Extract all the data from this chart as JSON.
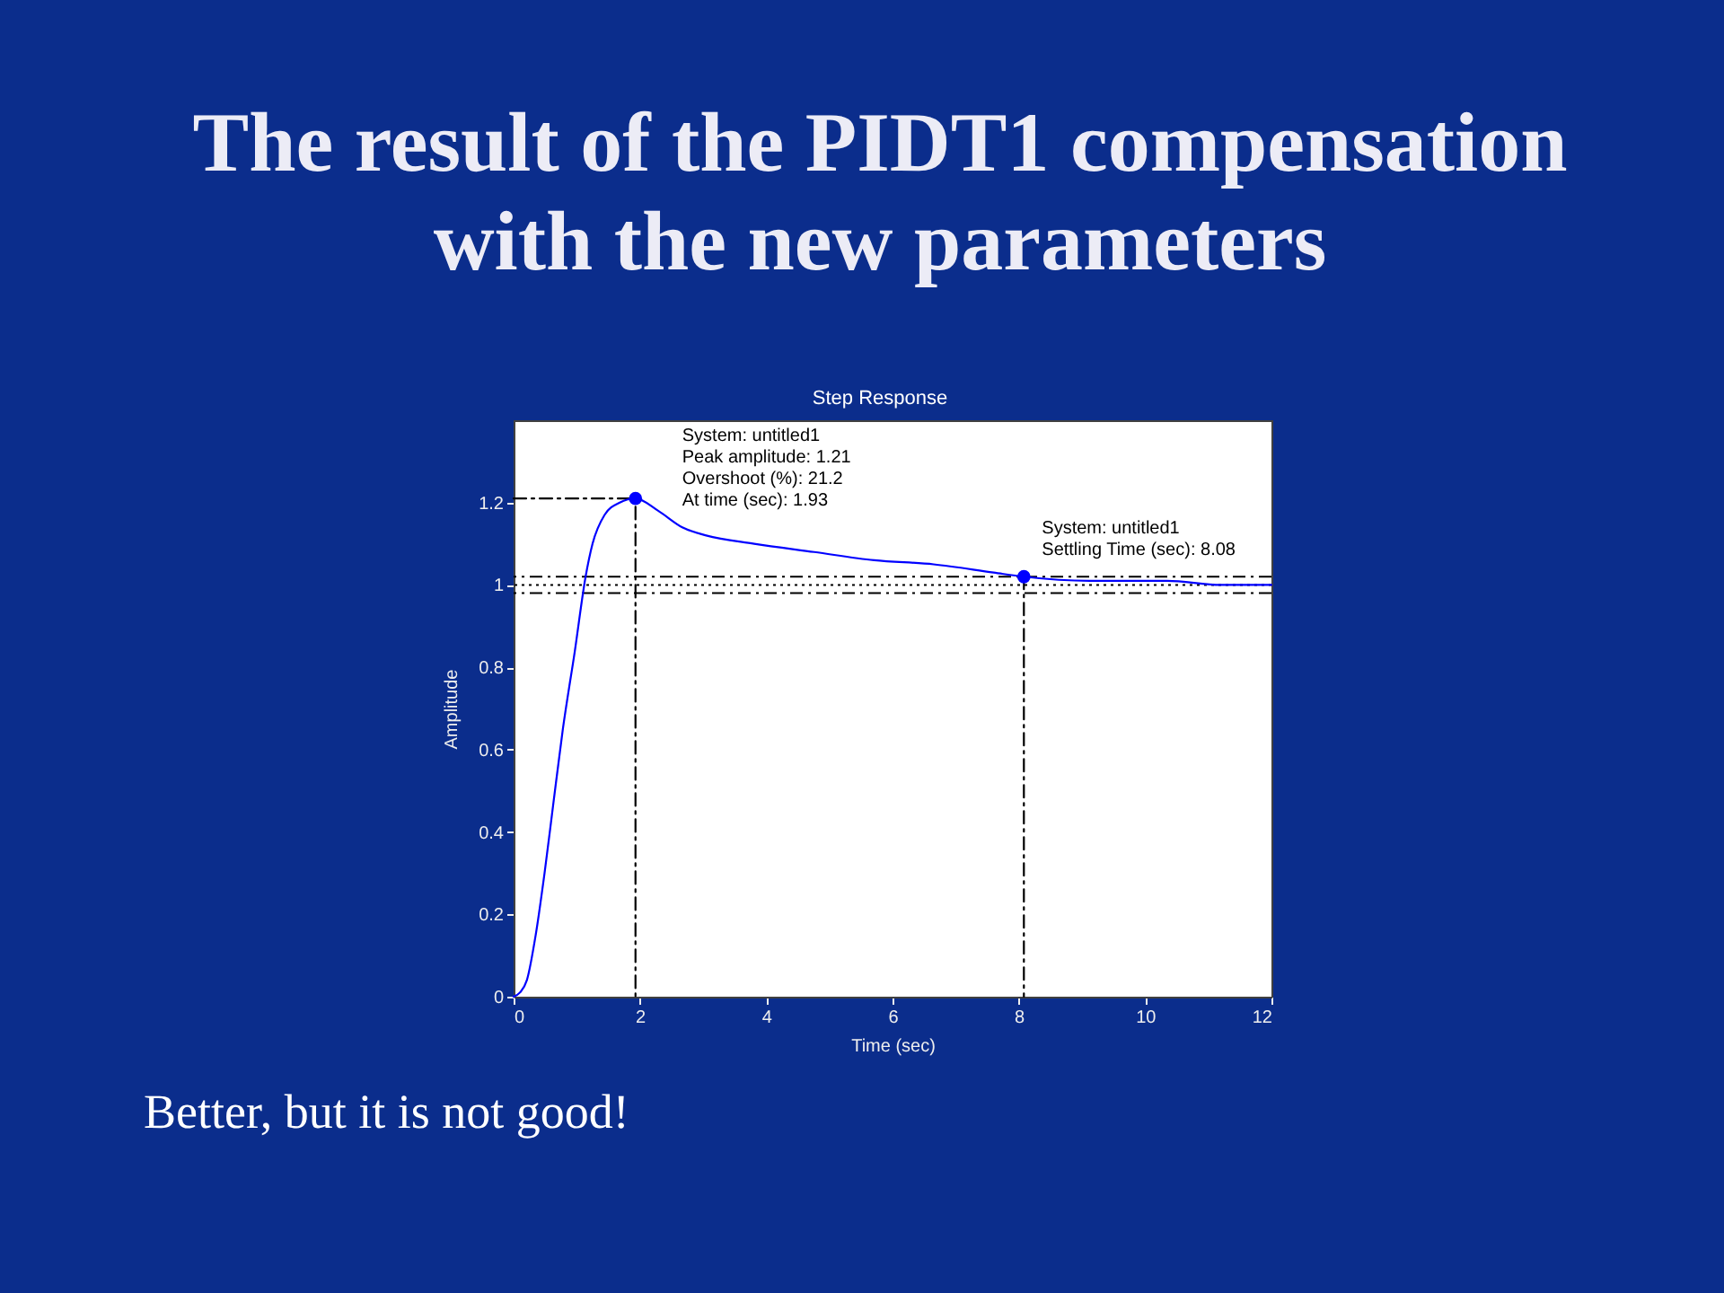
{
  "chart_data": {
    "type": "line",
    "title": "The result of the PIDT1 compensation with the new parameters",
    "subtitle": "Step Response",
    "xlabel": "Time (sec)",
    "ylabel": "Amplitude",
    "xlim": [
      0,
      12
    ],
    "ylim": [
      0,
      1.4
    ],
    "xticks": [
      0,
      2,
      4,
      6,
      8,
      10,
      12
    ],
    "yticks": [
      0,
      0.2,
      0.4,
      0.6,
      0.8,
      1,
      1.2
    ],
    "grid": false,
    "series": [
      {
        "color": "#000000",
        "line_style": "dashed",
        "x": [
          0,
          1.93,
          1.93
        ],
        "values": [
          1.21,
          1.21,
          0
        ]
      },
      {
        "color": "#000000",
        "line_style": "dashed",
        "x": [
          8.08,
          8.08
        ],
        "values": [
          1.02,
          0
        ]
      },
      {
        "color": "#0000ff",
        "x": [
          0,
          0.1,
          0.21,
          0.35,
          0.49,
          0.63,
          0.78,
          0.97,
          1.14,
          1.25,
          1.44,
          1.68,
          1.93,
          2.29,
          2.67,
          3.05,
          3.81,
          4.76,
          5.71,
          6.65,
          7.6,
          8.08,
          9.12,
          10.35,
          11.2,
          12
        ],
        "values": [
          0,
          0.01,
          0.04,
          0.15,
          0.3,
          0.47,
          0.65,
          0.84,
          1.02,
          1.1,
          1.17,
          1.2,
          1.21,
          1.18,
          1.14,
          1.12,
          1.1,
          1.08,
          1.06,
          1.05,
          1.03,
          1.02,
          1.01,
          1.01,
          1.0,
          1.0
        ]
      },
      {
        "type": "scatter",
        "color": "#0000ff",
        "marker": "circle",
        "x": [
          1.93,
          8.08
        ],
        "values": [
          1.21,
          1.02
        ]
      }
    ],
    "ref_lines": [
      {
        "axis": "y",
        "value": 1.02,
        "color": "#000000",
        "line_style": "dashed"
      },
      {
        "axis": "y",
        "value": 0.98,
        "color": "#000000",
        "line_style": "dashed"
      },
      {
        "axis": "y",
        "value": 1,
        "color": "#000000",
        "line_style": "dotted"
      }
    ],
    "annotations": [
      {
        "text": "System: untitled1\nPeak amplitude: 1.21\nOvershoot (%): 21.2\nAt time (sec): 1.93",
        "x": 1.93,
        "y": 1.21
      },
      {
        "text": "System: untitled1\nSettling Time (sec): 8.08",
        "x": 8.08,
        "y": 1.02
      },
      "Better, but it is not good!"
    ]
  }
}
